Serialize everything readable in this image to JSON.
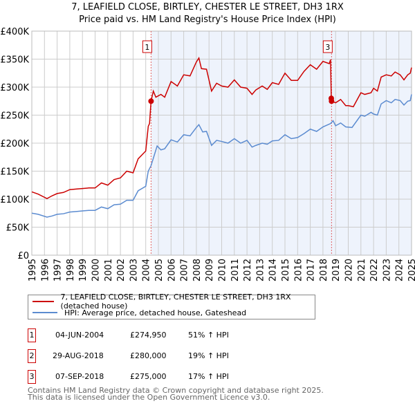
{
  "title": "7, LEAFIELD CLOSE, BIRTLEY, CHESTER LE STREET, DH3 1RX",
  "subtitle": "Price paid vs. HM Land Registry's House Price Index (HPI)",
  "chart_data": {
    "type": "line",
    "ylim": [
      0,
      400000
    ],
    "xlim": [
      1995,
      2025
    ],
    "yticks": [
      "£0",
      "£50K",
      "£100K",
      "£150K",
      "£200K",
      "£250K",
      "£300K",
      "£350K",
      "£400K"
    ],
    "xticks": [
      "1995",
      "1996",
      "1997",
      "1998",
      "1999",
      "2000",
      "2001",
      "2002",
      "2003",
      "2004",
      "2005",
      "2006",
      "2007",
      "2008",
      "2009",
      "2010",
      "2011",
      "2012",
      "2013",
      "2014",
      "2015",
      "2016",
      "2017",
      "2018",
      "2019",
      "2020",
      "2021",
      "2022",
      "2023",
      "2024",
      "2025"
    ],
    "series": [
      {
        "name": "7, LEAFIELD CLOSE, BIRTLEY, CHESTER LE STREET, DH3 1RX (detached house)",
        "color": "#cc0000",
        "points": [
          [
            1995,
            113
          ],
          [
            1995.5,
            109
          ],
          [
            1996.2,
            101
          ],
          [
            1996.6,
            106
          ],
          [
            1997,
            110
          ],
          [
            1997.5,
            112
          ],
          [
            1998,
            117
          ],
          [
            1998.5,
            118
          ],
          [
            1999,
            119
          ],
          [
            1999.5,
            120
          ],
          [
            2000,
            120
          ],
          [
            2000.5,
            129
          ],
          [
            2001,
            125
          ],
          [
            2001.5,
            135
          ],
          [
            2002,
            138
          ],
          [
            2002.5,
            150
          ],
          [
            2003,
            147
          ],
          [
            2003.4,
            172
          ],
          [
            2004,
            186
          ],
          [
            2004.2,
            230
          ],
          [
            2004.3,
            235
          ],
          [
            2004.42,
            275
          ],
          [
            2004.6,
            293
          ],
          [
            2004.8,
            282
          ],
          [
            2005.2,
            287
          ],
          [
            2005.5,
            282
          ],
          [
            2006,
            310
          ],
          [
            2006.5,
            302
          ],
          [
            2007,
            322
          ],
          [
            2007.5,
            320
          ],
          [
            2008,
            345
          ],
          [
            2008.2,
            352
          ],
          [
            2008.4,
            333
          ],
          [
            2008.8,
            332
          ],
          [
            2009.2,
            293
          ],
          [
            2009.6,
            307
          ],
          [
            2010,
            302
          ],
          [
            2010.5,
            300
          ],
          [
            2011,
            313
          ],
          [
            2011.5,
            300
          ],
          [
            2012,
            298
          ],
          [
            2012.4,
            287
          ],
          [
            2012.7,
            295
          ],
          [
            2013.2,
            302
          ],
          [
            2013.6,
            296
          ],
          [
            2014,
            308
          ],
          [
            2014.5,
            305
          ],
          [
            2015,
            325
          ],
          [
            2015.5,
            312
          ],
          [
            2016,
            312
          ],
          [
            2016.5,
            328
          ],
          [
            2017,
            340
          ],
          [
            2017.5,
            332
          ],
          [
            2018,
            346
          ],
          [
            2018.5,
            342
          ],
          [
            2018.6,
            349
          ],
          [
            2018.66,
            280
          ],
          [
            2018.68,
            275
          ],
          [
            2019,
            272
          ],
          [
            2019.4,
            278
          ],
          [
            2019.8,
            267
          ],
          [
            2020,
            267
          ],
          [
            2020.4,
            265
          ],
          [
            2021,
            290
          ],
          [
            2021.3,
            287
          ],
          [
            2021.8,
            290
          ],
          [
            2022,
            298
          ],
          [
            2022.3,
            293
          ],
          [
            2022.6,
            318
          ],
          [
            2023,
            322
          ],
          [
            2023.4,
            320
          ],
          [
            2023.7,
            327
          ],
          [
            2024.1,
            322
          ],
          [
            2024.4,
            313
          ],
          [
            2024.7,
            322
          ],
          [
            2024.9,
            325
          ],
          [
            2025,
            335
          ]
        ]
      },
      {
        "name": "HPI: Average price, detached house, Gateshead",
        "color": "#5b8bd0",
        "points": [
          [
            1995,
            75
          ],
          [
            1995.5,
            73
          ],
          [
            1996.2,
            68
          ],
          [
            1996.6,
            70
          ],
          [
            1997,
            73
          ],
          [
            1997.5,
            74
          ],
          [
            1998,
            77
          ],
          [
            1998.5,
            78
          ],
          [
            1999,
            79
          ],
          [
            1999.5,
            80
          ],
          [
            2000,
            80
          ],
          [
            2000.5,
            86
          ],
          [
            2001,
            83
          ],
          [
            2001.5,
            90
          ],
          [
            2002,
            91
          ],
          [
            2002.5,
            98
          ],
          [
            2003,
            98
          ],
          [
            2003.4,
            115
          ],
          [
            2004,
            123
          ],
          [
            2004.2,
            150
          ],
          [
            2004.42,
            160
          ],
          [
            2004.6,
            173
          ],
          [
            2004.9,
            195
          ],
          [
            2005.2,
            188
          ],
          [
            2005.5,
            190
          ],
          [
            2006,
            206
          ],
          [
            2006.5,
            202
          ],
          [
            2007,
            215
          ],
          [
            2007.5,
            213
          ],
          [
            2008,
            228
          ],
          [
            2008.2,
            233
          ],
          [
            2008.5,
            220
          ],
          [
            2008.8,
            221
          ],
          [
            2009.2,
            196
          ],
          [
            2009.6,
            205
          ],
          [
            2010,
            203
          ],
          [
            2010.5,
            200
          ],
          [
            2011,
            208
          ],
          [
            2011.5,
            200
          ],
          [
            2012,
            205
          ],
          [
            2012.4,
            193
          ],
          [
            2012.7,
            196
          ],
          [
            2013.2,
            200
          ],
          [
            2013.6,
            198
          ],
          [
            2014,
            204
          ],
          [
            2014.5,
            205
          ],
          [
            2015,
            215
          ],
          [
            2015.5,
            208
          ],
          [
            2016,
            210
          ],
          [
            2016.5,
            217
          ],
          [
            2017,
            225
          ],
          [
            2017.5,
            221
          ],
          [
            2018,
            229
          ],
          [
            2018.6,
            235
          ],
          [
            2018.8,
            240
          ],
          [
            2019,
            231
          ],
          [
            2019.4,
            236
          ],
          [
            2019.8,
            229
          ],
          [
            2020.3,
            228
          ],
          [
            2021,
            250
          ],
          [
            2021.3,
            248
          ],
          [
            2021.8,
            255
          ],
          [
            2022,
            252
          ],
          [
            2022.3,
            250
          ],
          [
            2022.6,
            270
          ],
          [
            2023,
            276
          ],
          [
            2023.4,
            272
          ],
          [
            2023.7,
            278
          ],
          [
            2024.1,
            276
          ],
          [
            2024.4,
            268
          ],
          [
            2024.7,
            275
          ],
          [
            2024.9,
            276
          ],
          [
            2025,
            287
          ]
        ]
      }
    ],
    "sales": [
      {
        "label": "1",
        "x": 2004.42,
        "y": 274950
      },
      {
        "label": "2",
        "x": 2018.66,
        "y": 280000
      },
      {
        "label": "3",
        "x": 2018.68,
        "y": 275000
      }
    ],
    "markers_shown": [
      "1",
      "3"
    ],
    "legend_position": "below"
  },
  "legend": [
    {
      "label": "7, LEAFIELD CLOSE, BIRTLEY, CHESTER LE STREET, DH3 1RX (detached house)",
      "color": "#cc0000"
    },
    {
      "label": "HPI: Average price, detached house, Gateshead",
      "color": "#5b8bd0"
    }
  ],
  "transactions": [
    {
      "num": "1",
      "date": "04-JUN-2004",
      "price": "£274,950",
      "hpi": "51% ↑ HPI"
    },
    {
      "num": "2",
      "date": "29-AUG-2018",
      "price": "£280,000",
      "hpi": "19% ↑ HPI"
    },
    {
      "num": "3",
      "date": "07-SEP-2018",
      "price": "£275,000",
      "hpi": "17% ↑ HPI"
    }
  ],
  "footer": [
    "Contains HM Land Registry data © Crown copyright and database right 2025.",
    "This data is licensed under the Open Government Licence v3.0."
  ]
}
